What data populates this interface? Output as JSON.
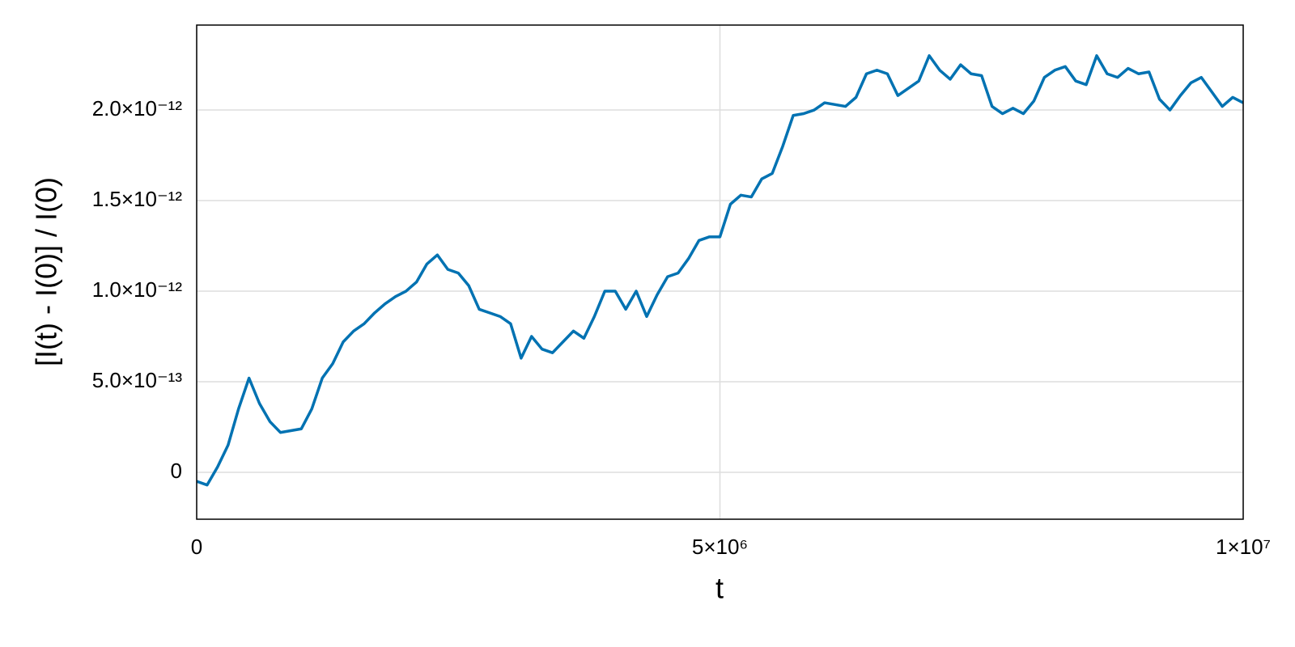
{
  "chart_data": {
    "type": "line",
    "xlabel": "t",
    "ylabel": "[I(t) - I(0)] / I(0)",
    "xlim": [
      0,
      10000000
    ],
    "ylim": [
      -2.59e-13,
      2.469e-12
    ],
    "xticks": [
      0,
      {
        "value": 5000000,
        "label": "5×10⁶"
      },
      {
        "value": 10000000,
        "label": "1×10⁷"
      }
    ],
    "yticks": [
      0,
      {
        "value": 5e-13,
        "label": "5.0×10⁻¹³"
      },
      {
        "value": 1e-12,
        "label": "1.0×10⁻¹²"
      },
      {
        "value": 1.5e-12,
        "label": "1.5×10⁻¹²"
      },
      {
        "value": 2e-12,
        "label": "2.0×10⁻¹²"
      }
    ],
    "grid": true,
    "x": [
      0,
      100000,
      200000,
      300000,
      400000,
      500000,
      600000,
      700000,
      800000,
      900000,
      1000000,
      1100000,
      1200000,
      1300000,
      1400000,
      1500000,
      1600000,
      1700000,
      1800000,
      1900000,
      2000000,
      2100000,
      2200000,
      2300000,
      2400000,
      2500000,
      2600000,
      2700000,
      2800000,
      2900000,
      3000000,
      3100000,
      3200000,
      3300000,
      3400000,
      3500000,
      3600000,
      3700000,
      3800000,
      3900000,
      4000000,
      4100000,
      4200000,
      4300000,
      4400000,
      4500000,
      4600000,
      4700000,
      4800000,
      4900000,
      5000000,
      5100000,
      5200000,
      5300000,
      5400000,
      5500000,
      5600000,
      5700000,
      5800000,
      5900000,
      6000000,
      6100000,
      6200000,
      6300000,
      6400000,
      6500000,
      6600000,
      6700000,
      6800000,
      6900000,
      7000000,
      7100000,
      7200000,
      7300000,
      7400000,
      7500000,
      7600000,
      7700000,
      7800000,
      7900000,
      8000000,
      8100000,
      8200000,
      8300000,
      8400000,
      8500000,
      8600000,
      8700000,
      8800000,
      8900000,
      9000000,
      9100000,
      9200000,
      9300000,
      9400000,
      9500000,
      9600000,
      9700000,
      9800000,
      9900000,
      10000000
    ],
    "series": [
      {
        "color": "#0072b2",
        "values": [
          -5e-14,
          -7e-14,
          3e-14,
          1.5e-13,
          3.5e-13,
          5.2e-13,
          3.8e-13,
          2.8e-13,
          2.2e-13,
          2.3e-13,
          2.4e-13,
          3.5e-13,
          5.2e-13,
          6e-13,
          7.2e-13,
          7.8e-13,
          8.2e-13,
          8.8e-13,
          9.3e-13,
          9.7e-13,
          1e-12,
          1.05e-12,
          1.15e-12,
          1.2e-12,
          1.12e-12,
          1.1e-12,
          1.03e-12,
          9e-13,
          8.8e-13,
          8.6e-13,
          8.2e-13,
          6.3e-13,
          7.5e-13,
          6.8e-13,
          6.6e-13,
          7.2e-13,
          7.8e-13,
          7.4e-13,
          8.6e-13,
          1e-12,
          1e-12,
          9e-13,
          1e-12,
          8.6e-13,
          9.8e-13,
          1.08e-12,
          1.1e-12,
          1.18e-12,
          1.28e-12,
          1.3e-12,
          1.3e-12,
          1.48e-12,
          1.53e-12,
          1.52e-12,
          1.62e-12,
          1.65e-12,
          1.8e-12,
          1.97e-12,
          1.98e-12,
          2e-12,
          2.04e-12,
          2.03e-12,
          2.02e-12,
          2.07e-12,
          2.2e-12,
          2.22e-12,
          2.2e-12,
          2.08e-12,
          2.12e-12,
          2.16e-12,
          2.3e-12,
          2.22e-12,
          2.17e-12,
          2.25e-12,
          2.2e-12,
          2.19e-12,
          2.02e-12,
          1.98e-12,
          2.01e-12,
          1.98e-12,
          2.05e-12,
          2.18e-12,
          2.22e-12,
          2.24e-12,
          2.16e-12,
          2.14e-12,
          2.3e-12,
          2.2e-12,
          2.18e-12,
          2.23e-12,
          2.2e-12,
          2.21e-12,
          2.06e-12,
          2e-12,
          2.08e-12,
          2.15e-12,
          2.18e-12,
          2.1e-12,
          2.02e-12,
          2.07e-12,
          2.04e-12
        ]
      }
    ]
  }
}
